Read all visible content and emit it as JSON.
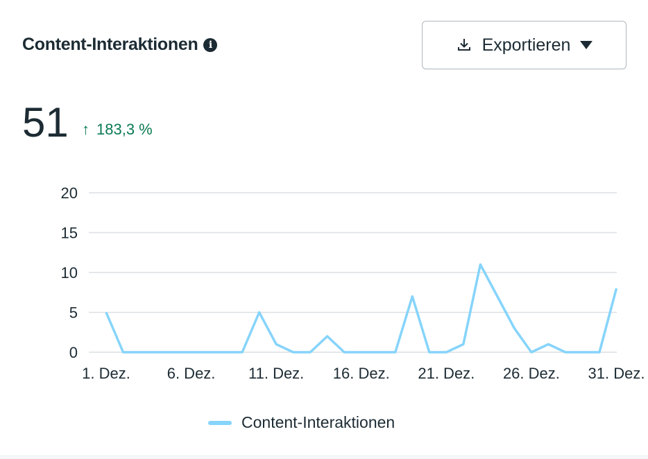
{
  "header": {
    "title": "Content-Interaktionen",
    "info_icon": "info-icon",
    "export_label": "Exportieren"
  },
  "summary": {
    "total": "51",
    "change": "183,3 %",
    "change_direction": "up",
    "change_color": "#0a7a52"
  },
  "chart_data": {
    "type": "line",
    "title": "Content-Interaktionen",
    "x": [
      1,
      2,
      3,
      4,
      5,
      6,
      7,
      8,
      9,
      10,
      11,
      12,
      13,
      14,
      15,
      16,
      17,
      18,
      19,
      20,
      21,
      22,
      23,
      24,
      25,
      26,
      27,
      28,
      29,
      30,
      31
    ],
    "x_tick_labels": [
      "1. Dez.",
      "6. Dez.",
      "11. Dez.",
      "16. Dez.",
      "21. Dez.",
      "26. Dez.",
      "31. Dez."
    ],
    "x_tick_days": [
      1,
      6,
      11,
      16,
      21,
      26,
      31
    ],
    "y_ticks": [
      "0",
      "5",
      "10",
      "15",
      "20"
    ],
    "ylim": [
      0,
      20
    ],
    "grid": true,
    "series": [
      {
        "name": "Content-Interaktionen",
        "color": "#86d4fb",
        "values": [
          5,
          0,
          0,
          0,
          0,
          0,
          0,
          0,
          0,
          5,
          1,
          0,
          0,
          2,
          0,
          0,
          0,
          0,
          7,
          0,
          0,
          1,
          11,
          7,
          3,
          0,
          1,
          0,
          0,
          0,
          8
        ]
      }
    ],
    "legend": "bottom-center"
  }
}
